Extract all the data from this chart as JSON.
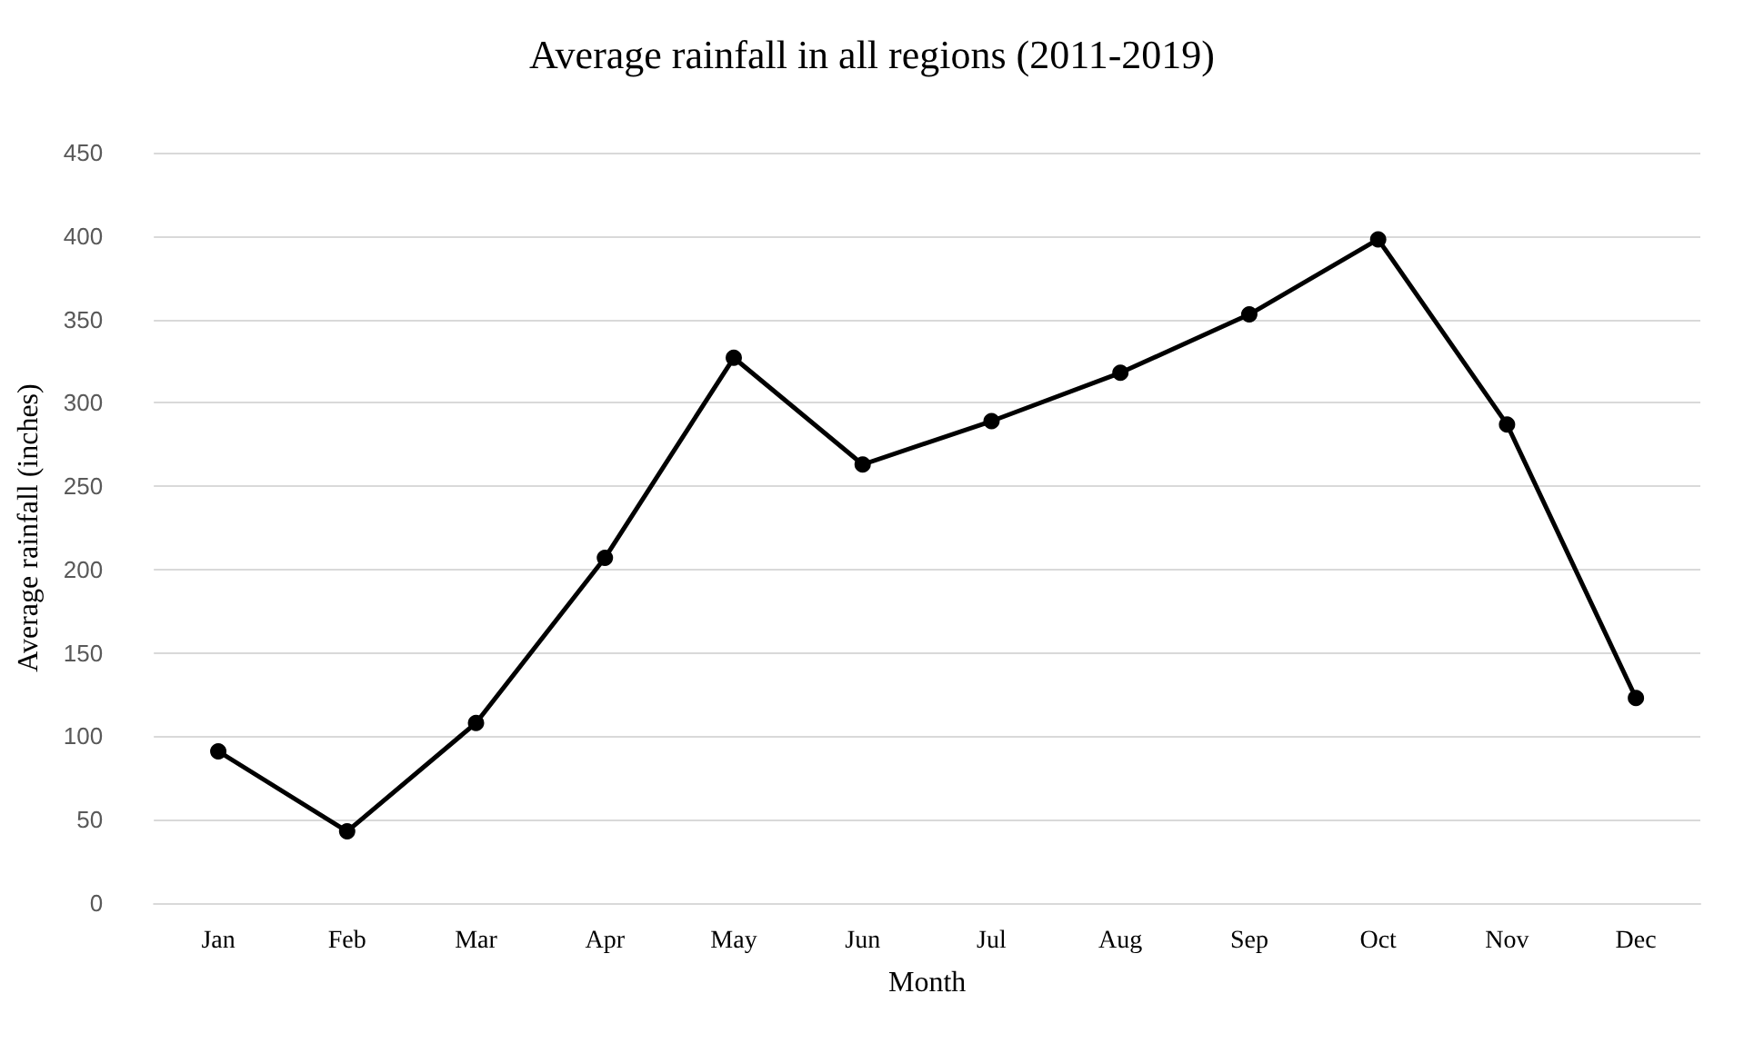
{
  "chart_data": {
    "type": "line",
    "title": "Average rainfall in all regions (2011-2019)",
    "xlabel": "Month",
    "ylabel": "Average rainfall (inches)",
    "categories": [
      "Jan",
      "Feb",
      "Mar",
      "Apr",
      "May",
      "Jun",
      "Jul",
      "Aug",
      "Sep",
      "Oct",
      "Nov",
      "Dec"
    ],
    "series": [
      {
        "color": "#000000",
        "values": [
          91,
          43,
          108,
          207,
          327,
          263,
          289,
          318,
          353,
          398,
          287,
          123
        ]
      }
    ],
    "ylim": [
      0,
      450
    ],
    "yticks": [
      0,
      50,
      100,
      150,
      200,
      250,
      300,
      350,
      400,
      450
    ],
    "grid": "y",
    "marker": "circle",
    "line_style": "solid"
  }
}
